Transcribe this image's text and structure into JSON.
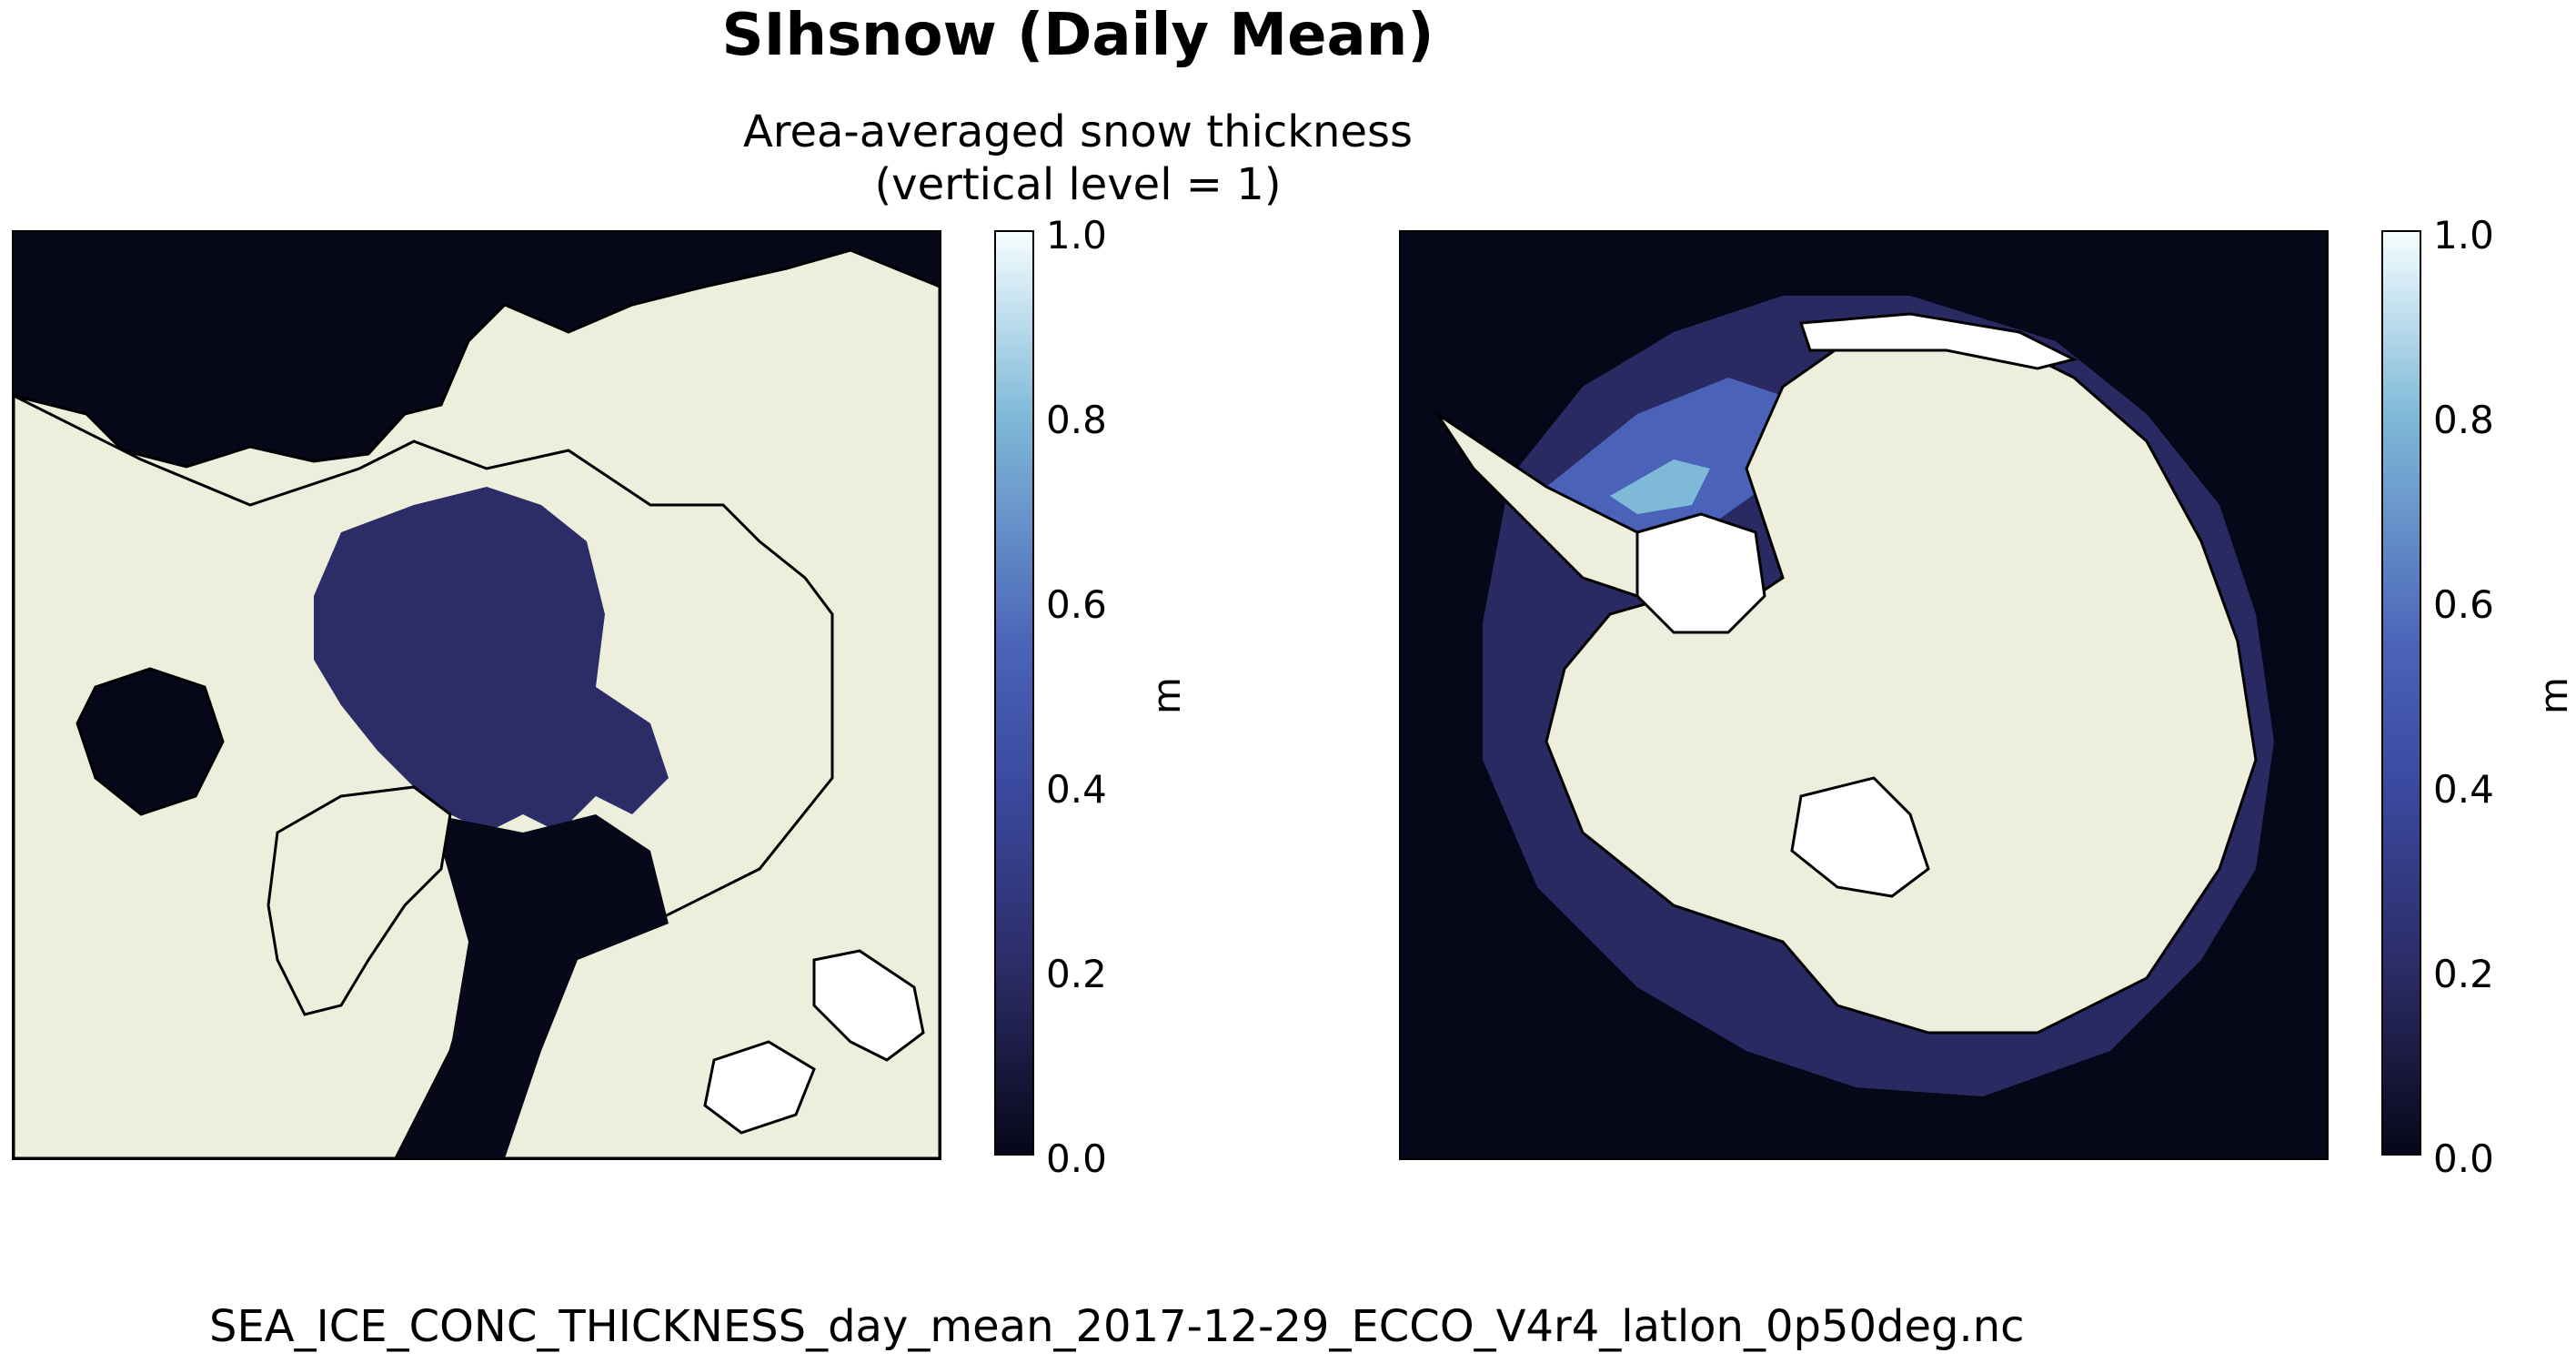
{
  "figure": {
    "title": "SIhsnow (Daily Mean)",
    "subtitle_line1": "Area-averaged snow thickness",
    "subtitle_line2": "(vertical level = 1)",
    "footer": "SEA_ICE_CONC_THICKNESS_day_mean_2017-12-29_ECCO_V4r4_latlon_0p50deg.nc"
  },
  "colors": {
    "ocean": "#07071a",
    "land": "#eeeedd",
    "snow_low": "#2c2c66",
    "snow_mid": "#4a63b8",
    "snow_high": "#7fb9d8",
    "masked": "#ffffff"
  },
  "colorbar": {
    "vmin": 0.0,
    "vmax": 1.0,
    "unit": "m",
    "ticks": [
      "0.0",
      "0.2",
      "0.4",
      "0.6",
      "0.8",
      "1.0"
    ]
  },
  "maps": [
    {
      "name": "arctic"
    },
    {
      "name": "antarctic"
    }
  ]
}
